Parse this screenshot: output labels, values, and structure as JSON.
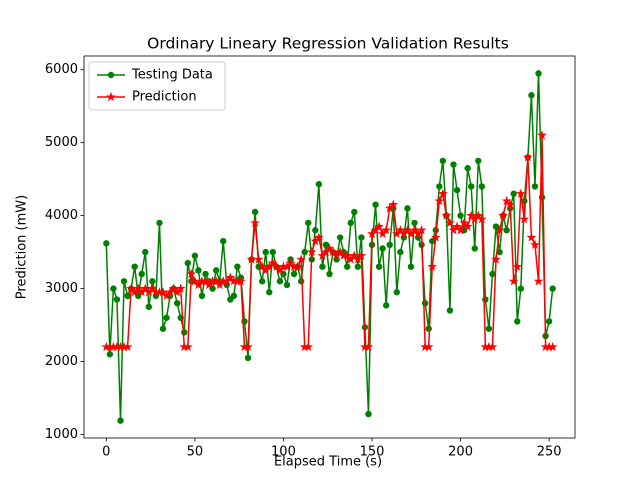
{
  "chart_data": {
    "type": "line",
    "title": "Ordinary Lineary Regression Validation Results",
    "x_label": "Elapsed Time (s)",
    "y_label": "Prediction (mW)",
    "x": [
      0,
      2,
      4,
      6,
      8,
      10,
      12,
      14,
      16,
      18,
      20,
      22,
      24,
      26,
      28,
      30,
      32,
      34,
      36,
      38,
      40,
      42,
      44,
      46,
      48,
      50,
      52,
      54,
      56,
      58,
      60,
      62,
      64,
      66,
      68,
      70,
      72,
      74,
      76,
      78,
      80,
      82,
      84,
      86,
      88,
      90,
      92,
      94,
      96,
      98,
      100,
      102,
      104,
      106,
      108,
      110,
      112,
      114,
      116,
      118,
      120,
      122,
      124,
      126,
      128,
      130,
      132,
      134,
      136,
      138,
      140,
      142,
      144,
      146,
      148,
      150,
      152,
      154,
      156,
      158,
      160,
      162,
      164,
      166,
      168,
      170,
      172,
      174,
      176,
      178,
      180,
      182,
      184,
      186,
      188,
      190,
      192,
      194,
      196,
      198,
      200,
      202,
      204,
      206,
      208,
      210,
      212,
      214,
      216,
      218,
      220,
      222,
      224,
      226,
      228,
      230,
      232,
      234,
      236,
      238,
      240,
      242,
      244,
      246,
      248,
      250,
      252
    ],
    "series": [
      {
        "name": "Testing Data",
        "color": "#008000",
        "marker": "circle",
        "values": [
          3620,
          2100,
          3000,
          2850,
          1190,
          3100,
          2900,
          3000,
          3300,
          2900,
          3200,
          3500,
          2750,
          3100,
          2900,
          3900,
          2450,
          2600,
          2900,
          3000,
          2800,
          2600,
          2400,
          3350,
          3100,
          3450,
          3250,
          2900,
          3200,
          3100,
          3000,
          3250,
          3100,
          3650,
          3050,
          2850,
          2900,
          3300,
          3150,
          2550,
          2050,
          3400,
          4050,
          3300,
          3100,
          3500,
          2950,
          3500,
          3300,
          3100,
          3200,
          3050,
          3400,
          3200,
          3300,
          3100,
          3500,
          3900,
          3400,
          3800,
          4430,
          3300,
          3600,
          3200,
          3500,
          3400,
          3700,
          3500,
          3300,
          3900,
          4050,
          3300,
          3700,
          2470,
          1280,
          3600,
          4150,
          3300,
          3550,
          2770,
          3600,
          4100,
          2950,
          3500,
          3700,
          4100,
          3300,
          3900,
          3700,
          3600,
          2800,
          2450,
          3650,
          3800,
          4400,
          4750,
          4000,
          2700,
          4700,
          4350,
          4000,
          3800,
          4650,
          4400,
          3550,
          4750,
          4400,
          2850,
          2450,
          3200,
          3850,
          3500,
          4000,
          3800,
          4100,
          4300,
          2550,
          3000,
          4200,
          4800,
          5650,
          4400,
          5950,
          4250,
          2350,
          2550,
          3000
        ]
      },
      {
        "name": "Prediction",
        "color": "#ff0000",
        "marker": "star",
        "values": [
          2200,
          2200,
          2200,
          2200,
          2200,
          2200,
          2200,
          3000,
          2950,
          3000,
          2950,
          3000,
          2950,
          3000,
          2950,
          2950,
          2950,
          2900,
          2950,
          3000,
          2950,
          3000,
          2200,
          2200,
          3200,
          3100,
          3050,
          3100,
          3100,
          3050,
          3100,
          3100,
          3050,
          3100,
          3100,
          3150,
          3100,
          3100,
          3100,
          2200,
          2200,
          3400,
          3900,
          3400,
          3300,
          3250,
          3300,
          3350,
          3300,
          3250,
          3300,
          3300,
          3350,
          3300,
          3300,
          3400,
          2200,
          2200,
          3500,
          3650,
          3700,
          3450,
          3500,
          3550,
          3500,
          3450,
          3500,
          3450,
          3450,
          3400,
          3450,
          3400,
          3450,
          2200,
          2200,
          3750,
          3800,
          3850,
          3750,
          3800,
          4100,
          4150,
          3750,
          3800,
          3750,
          3800,
          3750,
          3800,
          3750,
          3800,
          2200,
          2200,
          3300,
          3700,
          4200,
          4300,
          4000,
          3900,
          3800,
          3850,
          3800,
          3900,
          3850,
          4000,
          3950,
          4000,
          3950,
          2200,
          2200,
          2200,
          3400,
          3800,
          4000,
          4200,
          4150,
          3100,
          3300,
          4300,
          3950,
          4800,
          3700,
          3600,
          3100,
          5100,
          2200,
          2200,
          2200
        ]
      }
    ],
    "xlim": [
      -12.6,
      264.6
    ],
    "xticks": [
      0,
      50,
      100,
      150,
      200,
      250
    ],
    "ylim": [
      952,
      6188
    ],
    "yticks": [
      1000,
      2000,
      3000,
      4000,
      5000,
      6000
    ],
    "legend": "upper left"
  }
}
